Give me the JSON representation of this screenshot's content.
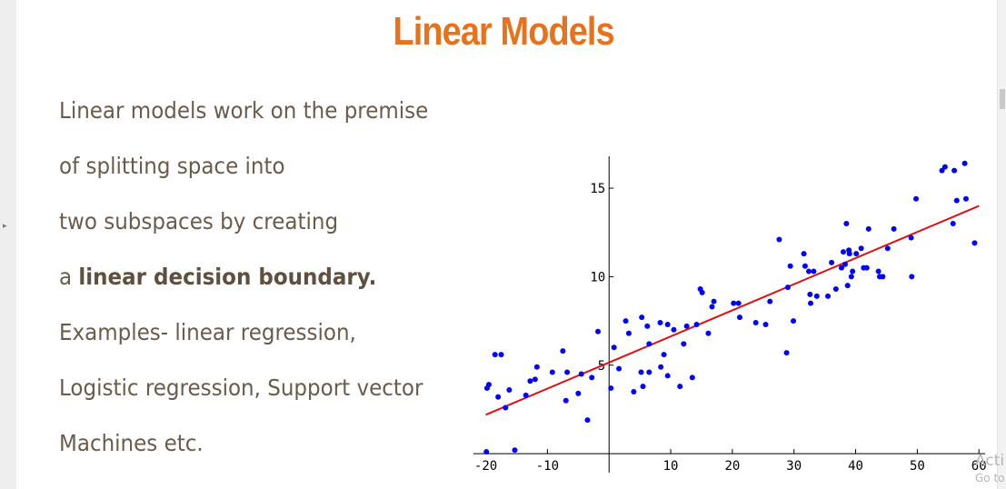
{
  "slide": {
    "title": "Linear Models",
    "lines": [
      "Linear models work on the premise",
      "of splitting space into",
      "two subspaces by creating",
      "Examples- linear regression,",
      "Logistic regression, Support vector",
      "Machines etc."
    ],
    "boundary_prefix": "a ",
    "boundary_bold": "linear decision boundary."
  },
  "overlay": {
    "activate_text": "Acti",
    "activate_sub": "Go to"
  },
  "colors": {
    "title": "#e8721c",
    "body_text": "#6b5b4a",
    "points": "#0000ff",
    "fit_line": "#dd1111"
  },
  "chart_data": {
    "type": "scatter",
    "xlim": [
      -22,
      61
    ],
    "ylim": [
      -0.2,
      16.8
    ],
    "x_ticks": [
      -20,
      -10,
      10,
      20,
      30,
      40,
      50,
      60
    ],
    "y_ticks": [
      5,
      10,
      15
    ],
    "x_tick_labels": [
      "-20",
      "-10",
      "10",
      "20",
      "30",
      "40",
      "50",
      "60"
    ],
    "y_tick_labels": [
      "5",
      "10",
      "15"
    ],
    "grid": false,
    "fit_line": {
      "x": [
        -20,
        60
      ],
      "y": [
        2.2,
        14.0
      ]
    },
    "points": [
      [
        -19.5,
        3.9
      ],
      [
        -19.8,
        3.7
      ],
      [
        -19.9,
        0.1
      ],
      [
        -18.5,
        5.6
      ],
      [
        -17.5,
        5.6
      ],
      [
        -18.0,
        3.2
      ],
      [
        -16.8,
        2.6
      ],
      [
        -16.2,
        3.6
      ],
      [
        -15.3,
        0.2
      ],
      [
        -13.5,
        3.3
      ],
      [
        -12.8,
        4.1
      ],
      [
        -12.0,
        4.2
      ],
      [
        -11.7,
        4.9
      ],
      [
        -9.2,
        4.6
      ],
      [
        -7.5,
        5.8
      ],
      [
        -7.0,
        3.0
      ],
      [
        -6.8,
        4.6
      ],
      [
        -5.0,
        3.4
      ],
      [
        -4.5,
        4.5
      ],
      [
        -3.5,
        1.9
      ],
      [
        -2.8,
        4.3
      ],
      [
        -1.8,
        6.9
      ],
      [
        0.3,
        3.7
      ],
      [
        0.8,
        6.0
      ],
      [
        1.6,
        4.8
      ],
      [
        2.7,
        7.5
      ],
      [
        3.2,
        6.8
      ],
      [
        4.0,
        3.5
      ],
      [
        5.2,
        4.6
      ],
      [
        5.5,
        3.8
      ],
      [
        5.3,
        7.7
      ],
      [
        6.2,
        7.2
      ],
      [
        6.5,
        4.6
      ],
      [
        6.5,
        6.2
      ],
      [
        8.3,
        7.4
      ],
      [
        8.4,
        4.9
      ],
      [
        8.9,
        5.6
      ],
      [
        9.5,
        7.3
      ],
      [
        9.5,
        4.4
      ],
      [
        10.5,
        7.0
      ],
      [
        11.5,
        3.8
      ],
      [
        12.1,
        6.2
      ],
      [
        12.6,
        7.2
      ],
      [
        13.5,
        4.3
      ],
      [
        14.2,
        7.3
      ],
      [
        14.8,
        9.3
      ],
      [
        15.1,
        9.1
      ],
      [
        16.1,
        6.8
      ],
      [
        16.7,
        8.3
      ],
      [
        17.0,
        8.6
      ],
      [
        20.2,
        8.5
      ],
      [
        21.0,
        8.5
      ],
      [
        21.2,
        7.7
      ],
      [
        23.8,
        7.4
      ],
      [
        25.4,
        7.3
      ],
      [
        26.1,
        8.6
      ],
      [
        27.6,
        12.1
      ],
      [
        28.8,
        5.7
      ],
      [
        29.0,
        9.4
      ],
      [
        29.4,
        10.6
      ],
      [
        29.9,
        7.5
      ],
      [
        31.6,
        11.3
      ],
      [
        31.8,
        10.6
      ],
      [
        32.4,
        10.3
      ],
      [
        32.6,
        9.0
      ],
      [
        32.7,
        8.5
      ],
      [
        33.2,
        10.3
      ],
      [
        33.7,
        8.9
      ],
      [
        35.5,
        8.9
      ],
      [
        36.1,
        10.8
      ],
      [
        36.8,
        9.3
      ],
      [
        37.7,
        10.5
      ],
      [
        38.0,
        11.4
      ],
      [
        38.3,
        10.7
      ],
      [
        38.5,
        13.0
      ],
      [
        38.7,
        9.5
      ],
      [
        38.9,
        11.5
      ],
      [
        39.0,
        11.3
      ],
      [
        39.3,
        10.0
      ],
      [
        39.5,
        10.3
      ],
      [
        40.1,
        11.3
      ],
      [
        40.9,
        11.6
      ],
      [
        41.3,
        10.5
      ],
      [
        41.8,
        10.5
      ],
      [
        42.1,
        12.7
      ],
      [
        43.7,
        10.3
      ],
      [
        43.9,
        10.0
      ],
      [
        44.4,
        10.0
      ],
      [
        45.2,
        11.6
      ],
      [
        46.2,
        12.7
      ],
      [
        49.0,
        12.2
      ],
      [
        49.1,
        10.0
      ],
      [
        49.8,
        14.4
      ],
      [
        54.0,
        16.0
      ],
      [
        54.5,
        16.2
      ],
      [
        55.8,
        13.0
      ],
      [
        56.0,
        16.0
      ],
      [
        56.4,
        14.3
      ],
      [
        57.7,
        16.4
      ],
      [
        57.9,
        14.4
      ],
      [
        59.3,
        11.9
      ]
    ]
  }
}
